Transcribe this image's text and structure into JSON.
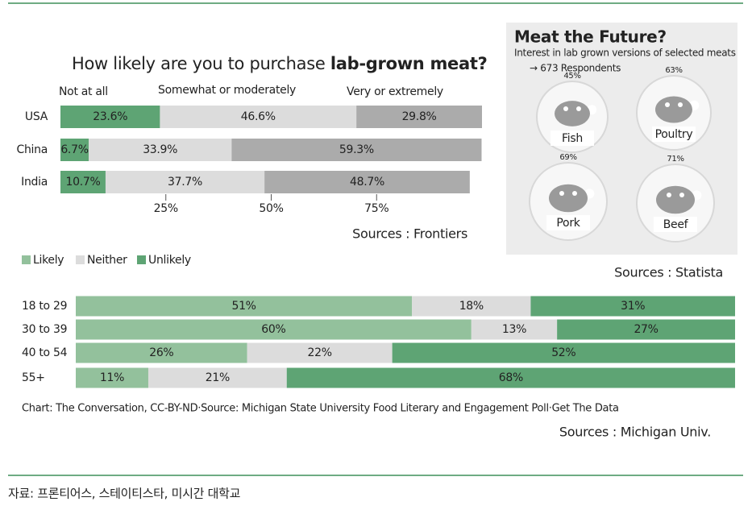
{
  "chart_data": [
    {
      "type": "stacked-bar",
      "title": "How likely are you to purchase",
      "title_emphasis": "lab-grown meat?",
      "categories": [
        "USA",
        "China",
        "India"
      ],
      "series": [
        {
          "name": "Not at all",
          "color": "#5ea474",
          "values": [
            23.6,
            6.7,
            10.7
          ],
          "value_labels": [
            "23.6%",
            "6.7%",
            "10.7%"
          ]
        },
        {
          "name": "Somewhat or moderately",
          "color": "#dcdcdc",
          "values": [
            46.6,
            33.9,
            37.7
          ],
          "value_labels": [
            "46.6%",
            "33.9%",
            "37.7%"
          ]
        },
        {
          "name": "Very or extremely",
          "color": "#ababab",
          "values": [
            29.8,
            59.3,
            48.7
          ],
          "value_labels": [
            "29.8%",
            "59.3%",
            "48.7%"
          ]
        }
      ],
      "xlim": [
        0,
        100
      ],
      "xticks": [
        {
          "value": 25,
          "label": "25%"
        },
        {
          "value": 50,
          "label": "50%"
        },
        {
          "value": 75,
          "label": "75%"
        }
      ],
      "source": "Sources : Frontiers"
    },
    {
      "type": "pictogram",
      "title": "Meat the Future?",
      "subtitle": "Interest in lab grown versions of selected meats",
      "note": "→ 673 Respondents",
      "categories": [
        "Fish",
        "Poultry",
        "Pork",
        "Beef"
      ],
      "values": [
        45,
        63,
        69,
        71
      ],
      "value_labels": [
        "45%",
        "63%",
        "69%",
        "71%"
      ],
      "source": "Sources : Statista"
    },
    {
      "type": "stacked-bar",
      "categories": [
        "18 to 29",
        "30 to 39",
        "40 to 54",
        "55+"
      ],
      "series": [
        {
          "name": "Likely",
          "color": "#93c19c",
          "values": [
            51,
            60,
            26,
            11
          ],
          "value_labels": [
            "51%",
            "60%",
            "26%",
            "11%"
          ]
        },
        {
          "name": "Neither",
          "color": "#dcdcdc",
          "values": [
            18,
            13,
            22,
            21
          ],
          "value_labels": [
            "18%",
            "13%",
            "22%",
            "21%"
          ]
        },
        {
          "name": "Unlikely",
          "color": "#5ea474",
          "values": [
            31,
            27,
            52,
            68
          ],
          "value_labels": [
            "31%",
            "27%",
            "52%",
            "68%"
          ]
        }
      ],
      "xlim": [
        0,
        100
      ],
      "legend": "top-left",
      "caption": "Chart: The Conversation, CC-BY-ND·Source: Michigan State University Food Literary and Engagement Poll·Get The Data",
      "source": "Sources : Michigan Univ."
    }
  ],
  "footer": "자료: 프론티어스, 스테이티스타, 미시간 대학교"
}
